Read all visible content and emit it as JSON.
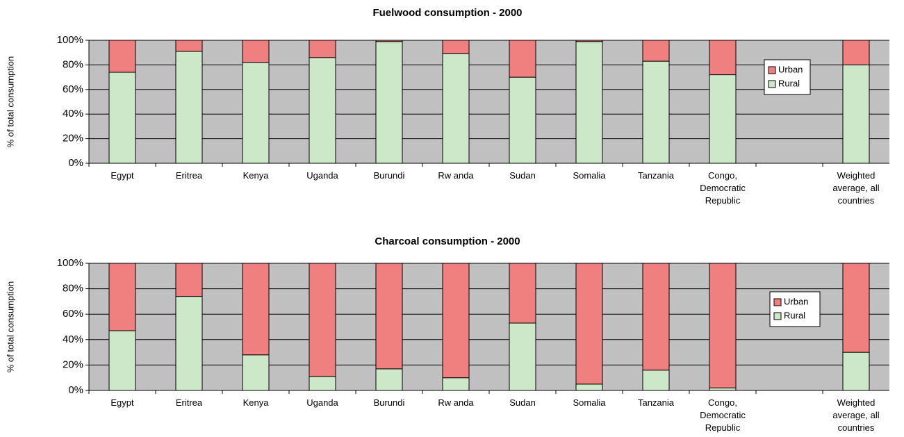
{
  "chart_data": [
    {
      "type": "bar",
      "stacked": true,
      "title": "Fuelwood consumption - 2000",
      "y_label": "% of total consumption",
      "categories": [
        "Egypt",
        "Eritrea",
        "Kenya",
        "Uganda",
        "Burundi",
        "Rw anda",
        "Sudan",
        "Somalia",
        "Tanzania",
        "Congo, Democratic Republic",
        null,
        "Weighted average, all countries"
      ],
      "series": [
        {
          "name": "Rural",
          "color": "#cce8c8",
          "values": [
            74,
            91,
            82,
            86,
            99,
            89,
            70,
            99,
            83,
            72,
            null,
            80
          ]
        },
        {
          "name": "Urban",
          "color": "#f08080",
          "values": [
            26,
            9,
            18,
            14,
            1,
            11,
            30,
            1,
            17,
            28,
            null,
            20
          ]
        }
      ],
      "ylim": [
        0,
        100
      ],
      "yticks": [
        {
          "value": 0,
          "label": "0%"
        },
        {
          "value": 20,
          "label": "20%"
        },
        {
          "value": 40,
          "label": "40%"
        },
        {
          "value": 60,
          "label": "60%"
        },
        {
          "value": 80,
          "label": "80%"
        },
        {
          "value": 100,
          "label": "100%"
        }
      ],
      "grid": true,
      "legend": "right",
      "plot_color": "#c0c0c0"
    },
    {
      "type": "bar",
      "stacked": true,
      "title": "Charcoal consumption - 2000",
      "y_label": "% of total consumption",
      "categories": [
        "Egypt",
        "Eritrea",
        "Kenya",
        "Uganda",
        "Burundi",
        "Rw anda",
        "Sudan",
        "Somalia",
        "Tanzania",
        "Congo, Democratic Republic",
        null,
        "Weighted average, all countries"
      ],
      "series": [
        {
          "name": "Rural",
          "color": "#cce8c8",
          "values": [
            47,
            74,
            28,
            11,
            17,
            10,
            53,
            5,
            16,
            2,
            null,
            30
          ]
        },
        {
          "name": "Urban",
          "color": "#f08080",
          "values": [
            53,
            26,
            72,
            89,
            83,
            90,
            47,
            95,
            84,
            98,
            null,
            70
          ]
        }
      ],
      "ylim": [
        0,
        100
      ],
      "yticks": [
        {
          "value": 0,
          "label": "0%"
        },
        {
          "value": 20,
          "label": "20%"
        },
        {
          "value": 40,
          "label": "40%"
        },
        {
          "value": 60,
          "label": "60%"
        },
        {
          "value": 80,
          "label": "80%"
        },
        {
          "value": 100,
          "label": "100%"
        }
      ],
      "grid": true,
      "legend": "right",
      "plot_color": "#c0c0c0"
    }
  ]
}
